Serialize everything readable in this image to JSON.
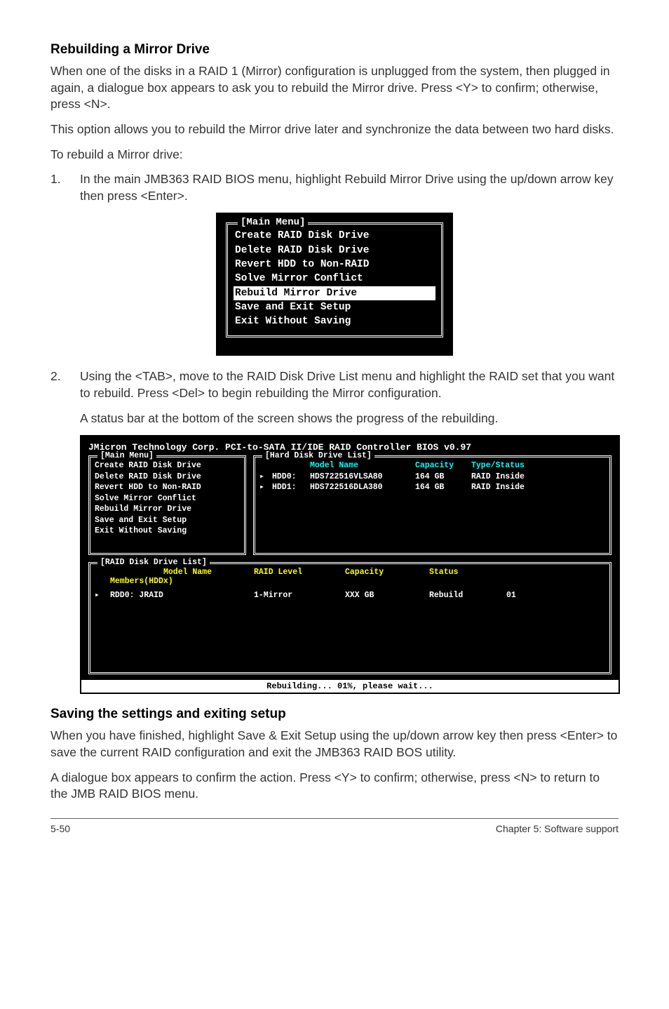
{
  "section1": {
    "heading": "Rebuilding a Mirror Drive",
    "p1": "When one of the disks in a RAID 1 (Mirror) configuration is unplugged from the system, then plugged in again, a dialogue box appears to ask you to rebuild the Mirror drive. Press <Y> to confirm; otherwise, press <N>.",
    "p2": "This option allows you to rebuild the Mirror drive later and synchronize the data between two hard disks.",
    "p3": "To rebuild a Mirror drive:",
    "step1_num": "1.",
    "step1_txt": "In the main JMB363 RAID BIOS menu, highlight Rebuild Mirror Drive using the up/down arrow key then press <Enter>.",
    "step2_num": "2.",
    "step2_txt": "Using the <TAB>, move to the RAID Disk Drive List menu and highlight the RAID set that you want to rebuild. Press <Del> to begin rebuilding the Mirror configuration.",
    "step2_sub": "A status bar at the bottom of the screen shows the progress of the rebuilding."
  },
  "bios_small": {
    "label": "[Main Menu]",
    "items": [
      "Create RAID Disk Drive",
      "Delete RAID Disk Drive",
      "Revert HDD to Non-RAID",
      "Solve Mirror Conflict",
      "Rebuild Mirror Drive",
      "Save and Exit Setup",
      "Exit Without Saving"
    ],
    "highlight_index": 4
  },
  "bios_big": {
    "title": "JMicron Technology Corp. PCI-to-SATA II/IDE RAID Controller BIOS v0.97",
    "main_label": "[Main Menu]",
    "hdd_label": "[Hard Disk Drive List]",
    "raid_label": "[RAID Disk Drive List]",
    "main_items": [
      "Create RAID Disk Drive",
      "Delete RAID Disk Drive",
      "Revert HDD to Non-RAID",
      "Solve Mirror Conflict",
      "Rebuild Mirror Drive",
      "Save and Exit Setup",
      "Exit Without Saving"
    ],
    "hdd_headers": {
      "model": "Model Name",
      "capacity": "Capacity",
      "type": "Type/Status"
    },
    "hdd_rows": [
      {
        "mark": "▸",
        "dev": "HDD0:",
        "model": "HDS722516VLSA80",
        "cap": "164 GB",
        "type": "RAID Inside"
      },
      {
        "mark": "▸",
        "dev": "HDD1:",
        "model": "HDS722516DLA380",
        "cap": "164 GB",
        "type": "RAID Inside"
      }
    ],
    "raid_headers": {
      "model": "Model Name",
      "level": "RAID Level",
      "capacity": "Capacity",
      "status": "Status"
    },
    "raid_members_label": "Members(HDDx)",
    "raid_row": {
      "mark": "▸",
      "model": "RDD0: JRAID",
      "level": "1-Mirror",
      "cap": "XXX GB",
      "status": "Rebuild",
      "extra": "01"
    },
    "status_bar": "Rebuilding... 01%, please wait..."
  },
  "section2": {
    "heading": "Saving the settings and exiting setup",
    "p1": "When you have finished, highlight Save & Exit Setup using the up/down arrow key then press <Enter> to save the current RAID configuration and exit the JMB363 RAID BOS utility.",
    "p2": "A dialogue box appears to confirm the action. Press <Y> to confirm; otherwise, press <N> to return to the JMB RAID BIOS menu."
  },
  "footer": {
    "left": "5-50",
    "right": "Chapter 5: Software support"
  },
  "colors": {
    "cyan": "#00ffff",
    "yellow": "#ffff00",
    "white": "#ffffff",
    "black": "#000000"
  }
}
